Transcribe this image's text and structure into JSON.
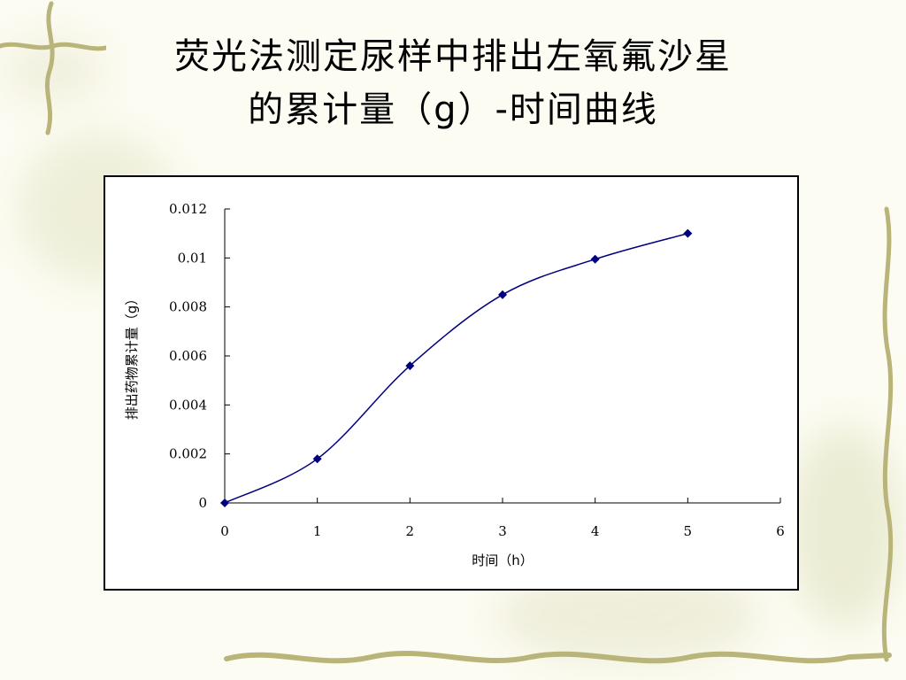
{
  "slide": {
    "title_line1": "荧光法测定尿样中排出左氧氟沙星",
    "title_line2": "的累计量（g）-时间曲线"
  },
  "colors": {
    "background": "#fdfcf3",
    "series": "#00007f",
    "vine": "#b9b47a",
    "blotch": "#dfe3bf"
  },
  "chart_data": {
    "type": "line",
    "marker": "diamond",
    "smooth": true,
    "x": [
      0,
      1,
      2,
      3,
      4,
      5
    ],
    "series": [
      {
        "values": [
          0,
          0.0018,
          0.0056,
          0.0085,
          0.00995,
          0.011
        ]
      }
    ],
    "xlabel": "时间（h）",
    "ylabel": "排出药物累计量（g）",
    "xlim": [
      0,
      6
    ],
    "ylim": [
      0,
      0.012
    ],
    "xticks": [
      "0",
      "1",
      "2",
      "3",
      "4",
      "5",
      "6"
    ],
    "yticks": [
      "0",
      "0.002",
      "0.004",
      "0.006",
      "0.008",
      "0.01",
      "0.012"
    ],
    "grid": false,
    "legend": "none"
  }
}
